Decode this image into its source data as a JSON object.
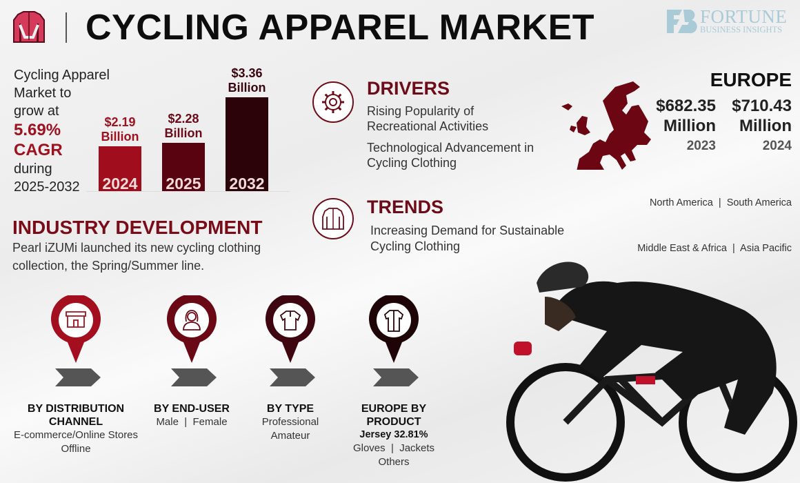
{
  "header": {
    "title": "CYCLING APPAREL MARKET",
    "icon": "cycling-jacket-icon",
    "brand": {
      "name": "FORTUNE",
      "subtitle": "BUSINESS INSIGHTS"
    }
  },
  "growth": {
    "line1": "Cycling Apparel",
    "line2": "Market to",
    "line3": "grow at",
    "cagr": "5.69%",
    "cagr_label": "CAGR",
    "line4": "during",
    "period": "2025-2032"
  },
  "chart_data": {
    "type": "bar",
    "categories": [
      "2024",
      "2025",
      "2032"
    ],
    "values": [
      2.19,
      2.28,
      3.36
    ],
    "labels": [
      {
        "value": "$2.19",
        "unit": "Billion"
      },
      {
        "value": "$2.28",
        "unit": "Billion"
      },
      {
        "value": "$3.36",
        "unit": "Billion"
      }
    ],
    "colors": [
      "#a00d1d",
      "#5a0310",
      "#2b0309"
    ]
  },
  "drivers": {
    "title": "DRIVERS",
    "icon": "gear-icon",
    "items": [
      "Rising Popularity of Recreational Activities",
      "Technological Advancement in Cycling Clothing"
    ]
  },
  "trends": {
    "title": "TRENDS",
    "icon": "jacket-icon",
    "items": [
      "Increasing Demand for Sustainable Cycling Clothing"
    ]
  },
  "region": {
    "title": "EUROPE",
    "map_icon": "europe-map-icon",
    "values": [
      {
        "amount": "$682.35",
        "unit": "Million",
        "year": "2023"
      },
      {
        "amount": "$710.43",
        "unit": "Million",
        "year": "2024"
      }
    ],
    "others_line1": "North America  |  South America",
    "others_line2": "Middle East & Africa  |  Asia Pacific"
  },
  "industry": {
    "title": "INDUSTRY DEVELOPMENT",
    "text": "Pearl iZUMi launched its new cycling clothing collection, the Spring/Summer line."
  },
  "segments": [
    {
      "title": "BY DISTRIBUTION CHANNEL",
      "lines": [
        "E-commerce/Online Stores",
        "Offline"
      ],
      "icon": "store-icon",
      "color": "#a30f1f"
    },
    {
      "title": "BY END-USER",
      "lines": [
        "Male  |  Female"
      ],
      "icon": "woman-user-icon",
      "color": "#6b0816"
    },
    {
      "title": "BY TYPE",
      "lines": [
        "Professional",
        "Amateur"
      ],
      "icon": "jersey-icon",
      "color": "#3e0610"
    },
    {
      "title": "EUROPE BY PRODUCT",
      "highlight": "Jersey 32.81%",
      "lines": [
        "Gloves  |  Jackets",
        "Others"
      ],
      "icon": "jersey-long-icon",
      "color": "#1e0307"
    }
  ]
}
